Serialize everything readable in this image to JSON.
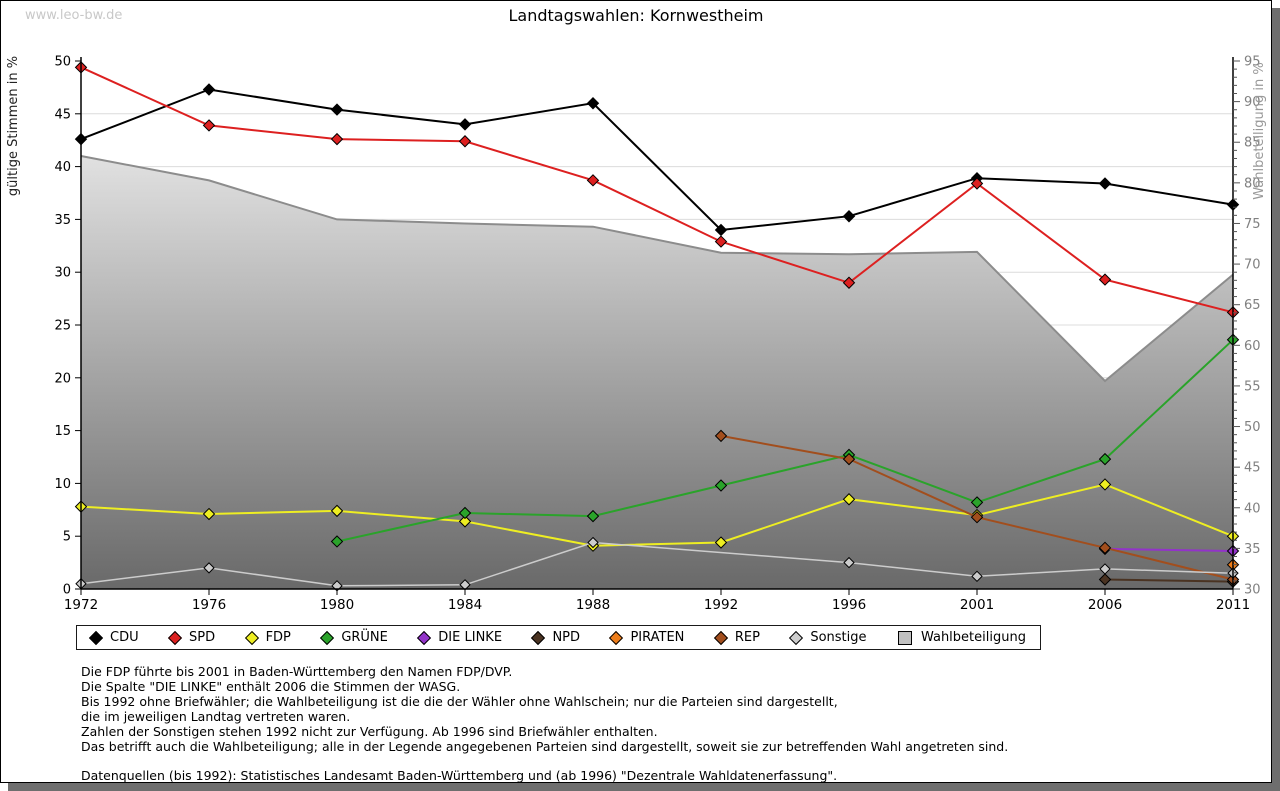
{
  "page": {
    "watermark": "www.leo-bw.de",
    "title": "Landtagswahlen: Kornwestheim"
  },
  "chart_data": {
    "type": "line",
    "title": "Landtagswahlen: Kornwestheim",
    "x_categories": [
      "1972",
      "1976",
      "1980",
      "1984",
      "1988",
      "1992",
      "1996",
      "2001",
      "2006",
      "2011"
    ],
    "left_axis": {
      "label": "gültige Stimmen in %",
      "min": 0,
      "max": 50,
      "tick_step": 5
    },
    "right_axis": {
      "label": "Wahlbeteiligung in %",
      "min": 30,
      "max": 95,
      "tick_step": 5
    },
    "grid": true,
    "legend_position": "bottom",
    "series": [
      {
        "name": "CDU",
        "type": "line",
        "axis": "left",
        "color": "#000000",
        "values": [
          42.6,
          47.3,
          45.4,
          44.0,
          46.0,
          34.0,
          35.3,
          38.9,
          38.4,
          36.4
        ]
      },
      {
        "name": "SPD",
        "type": "line",
        "axis": "left",
        "color": "#dd2020",
        "values": [
          49.4,
          43.9,
          42.6,
          42.4,
          38.7,
          32.9,
          29.0,
          38.4,
          29.3,
          26.2
        ]
      },
      {
        "name": "FDP",
        "type": "line",
        "axis": "left",
        "color": "#eeee22",
        "values": [
          7.8,
          7.1,
          7.4,
          6.4,
          4.1,
          4.4,
          8.5,
          7.0,
          9.9,
          5.0
        ]
      },
      {
        "name": "GRÜNE",
        "type": "line",
        "axis": "left",
        "color": "#2aa32a",
        "values": [
          null,
          null,
          4.5,
          7.2,
          6.9,
          9.8,
          12.7,
          8.2,
          12.3,
          23.6
        ]
      },
      {
        "name": "DIE LINKE",
        "type": "line",
        "axis": "left",
        "color": "#9233c9",
        "values": [
          null,
          null,
          null,
          null,
          null,
          null,
          null,
          null,
          3.8,
          3.6
        ]
      },
      {
        "name": "NPD",
        "type": "line",
        "axis": "left",
        "color": "#4a3322",
        "values": [
          null,
          null,
          null,
          null,
          null,
          null,
          null,
          null,
          0.9,
          0.7
        ]
      },
      {
        "name": "PIRATEN",
        "type": "line",
        "axis": "left",
        "color": "#ee7d1a",
        "values": [
          null,
          null,
          null,
          null,
          null,
          null,
          null,
          null,
          null,
          2.3
        ]
      },
      {
        "name": "REP",
        "type": "line",
        "axis": "left",
        "color": "#a24e1d",
        "values": [
          null,
          null,
          null,
          null,
          null,
          14.5,
          12.3,
          6.8,
          3.9,
          0.9
        ]
      },
      {
        "name": "Sonstige",
        "type": "line",
        "axis": "left",
        "color": "#cccccc",
        "values": [
          0.5,
          2.0,
          0.3,
          0.4,
          4.4,
          null,
          2.5,
          1.2,
          1.9,
          1.5
        ]
      },
      {
        "name": "Wahlbeteiligung",
        "type": "area",
        "axis": "right",
        "color": "#c0c0c0",
        "values": [
          83.3,
          80.3,
          75.5,
          75.0,
          74.6,
          71.4,
          71.2,
          71.5,
          55.6,
          68.7
        ]
      }
    ]
  },
  "footnotes": {
    "lines": [
      "Die FDP führte bis 2001 in Baden-Württemberg den Namen FDP/DVP.",
      "Die Spalte \"DIE LINKE\" enthält 2006 die Stimmen der WASG.",
      "Bis 1992 ohne Briefwähler; die Wahlbeteiligung ist die die der Wähler ohne Wahlschein; nur die Parteien sind dargestellt,",
      "die im jeweiligen Landtag vertreten waren.",
      "Zahlen der Sonstigen stehen 1992 nicht zur Verfügung. Ab 1996 sind Briefwähler enthalten.",
      "Das betrifft auch die Wahlbeteiligung; alle in der Legende angegebenen Parteien sind dargestellt, soweit sie zur betreffenden Wahl angetreten sind."
    ],
    "source": "Datenquellen (bis 1992): Statistisches Landesamt Baden-Württemberg und (ab 1996) \"Dezentrale Wahldatenerfassung\"."
  }
}
